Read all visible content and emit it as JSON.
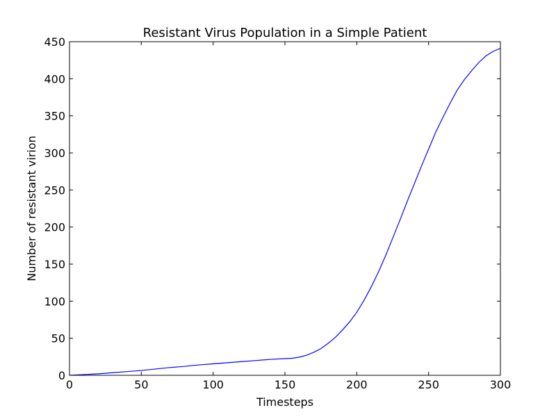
{
  "chart_data": {
    "type": "line",
    "title": "Resistant Virus Population in a Simple Patient",
    "xlabel": "Timesteps",
    "ylabel": "Number of resistant virion",
    "xlim": [
      0,
      300
    ],
    "ylim": [
      0,
      450
    ],
    "xticks": [
      0,
      50,
      100,
      150,
      200,
      250,
      300
    ],
    "yticks": [
      0,
      50,
      100,
      150,
      200,
      250,
      300,
      350,
      400,
      450
    ],
    "grid": false,
    "line_color": "#0000ff",
    "series": [
      {
        "x": [
          0,
          10,
          20,
          30,
          40,
          50,
          60,
          70,
          80,
          90,
          100,
          110,
          120,
          130,
          140,
          150,
          155,
          160,
          165,
          170,
          175,
          180,
          185,
          190,
          195,
          200,
          205,
          210,
          215,
          220,
          225,
          230,
          235,
          240,
          245,
          250,
          255,
          260,
          265,
          270,
          275,
          280,
          285,
          290,
          295,
          300
        ],
        "y": [
          0,
          1,
          2,
          3.5,
          5,
          6.5,
          8.5,
          10.5,
          12,
          14,
          15.5,
          17,
          18.5,
          20,
          21.5,
          22.5,
          23,
          24.5,
          27,
          31,
          36,
          43,
          51,
          61,
          72,
          85,
          101,
          119,
          139,
          161,
          185,
          209,
          234,
          258,
          282,
          305,
          328,
          348,
          367,
          385,
          399,
          411,
          422,
          431,
          437,
          441
        ]
      }
    ]
  }
}
